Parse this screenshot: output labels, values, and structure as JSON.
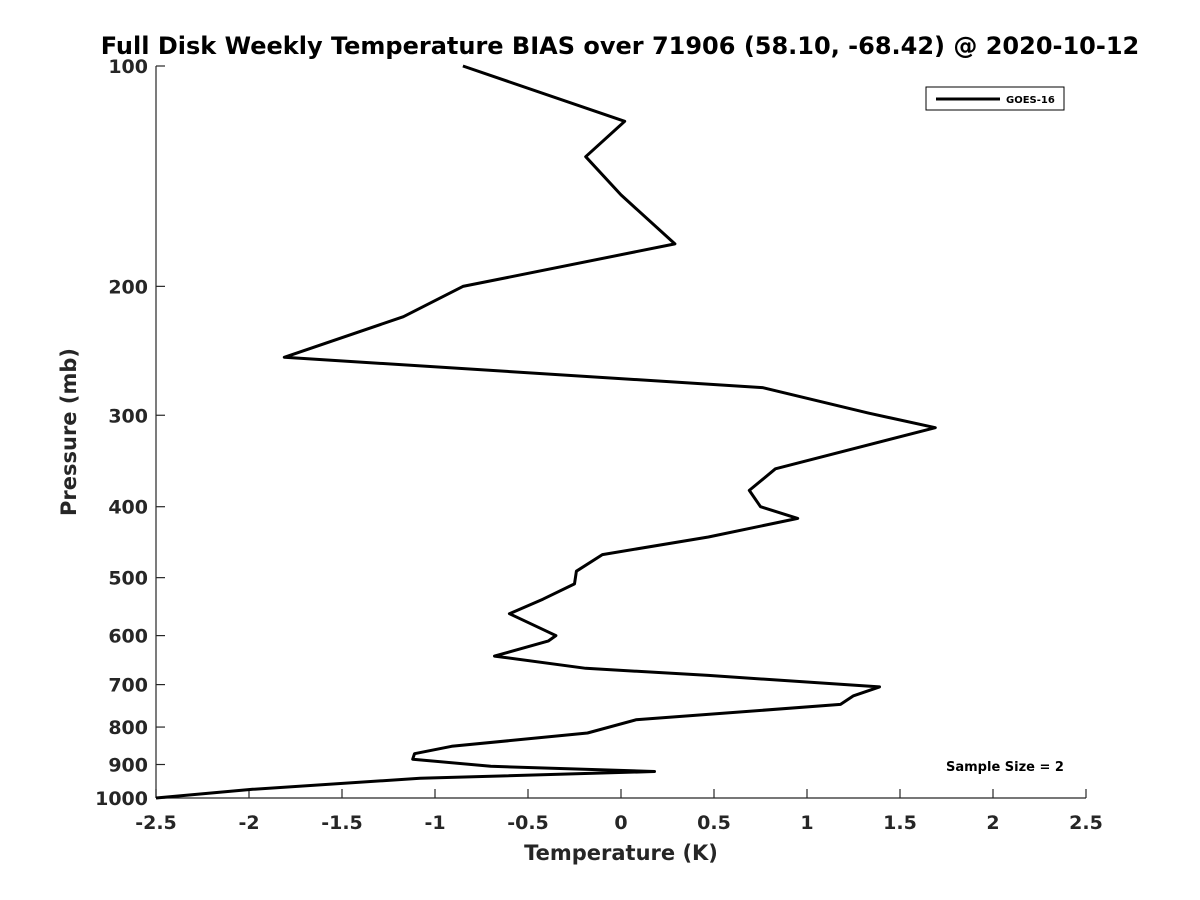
{
  "chart_data": {
    "type": "line",
    "title": "Full Disk Weekly Temperature BIAS over 71906 (58.10, -68.42) @ 2020-10-12",
    "xlabel": "Temperature (K)",
    "ylabel": "Pressure (mb)",
    "xlim": [
      -2.5,
      2.5
    ],
    "ylim": [
      100,
      1000
    ],
    "y_scale": "log",
    "y_reversed": true,
    "x_ticks": [
      "-2.5",
      "-2",
      "-1.5",
      "-1",
      "-0.5",
      "0",
      "0.5",
      "1",
      "1.5",
      "2",
      "2.5"
    ],
    "y_ticks": [
      "100",
      "200",
      "300",
      "400",
      "500",
      "600",
      "700",
      "800",
      "900",
      "1000"
    ],
    "grid": false,
    "legend_position": "top-right",
    "annotation": "Sample Size = 2",
    "series": [
      {
        "name": "GOES-16",
        "color": "#000000",
        "x": [
          -0.85,
          0.02,
          -0.19,
          0.0,
          0.29,
          -0.85,
          -1.17,
          -1.81,
          0.76,
          1.33,
          1.69,
          0.83,
          0.69,
          0.75,
          0.95,
          0.47,
          -0.1,
          -0.24,
          -0.25,
          -0.42,
          -0.6,
          -0.41,
          -0.35,
          -0.39,
          -0.68,
          -0.19,
          0.47,
          1.39,
          1.25,
          1.18,
          0.08,
          -0.18,
          -0.91,
          -1.11,
          -1.12,
          -0.7,
          0.18,
          -1.08,
          -1.98,
          -2.5
        ],
        "y": [
          100,
          119,
          133,
          150,
          175,
          200,
          220,
          250,
          275,
          298,
          312,
          355,
          380,
          400,
          415,
          440,
          465,
          490,
          510,
          535,
          560,
          590,
          600,
          610,
          640,
          665,
          680,
          705,
          725,
          745,
          782,
          815,
          850,
          870,
          885,
          905,
          920,
          940,
          973,
          1000
        ]
      }
    ]
  }
}
